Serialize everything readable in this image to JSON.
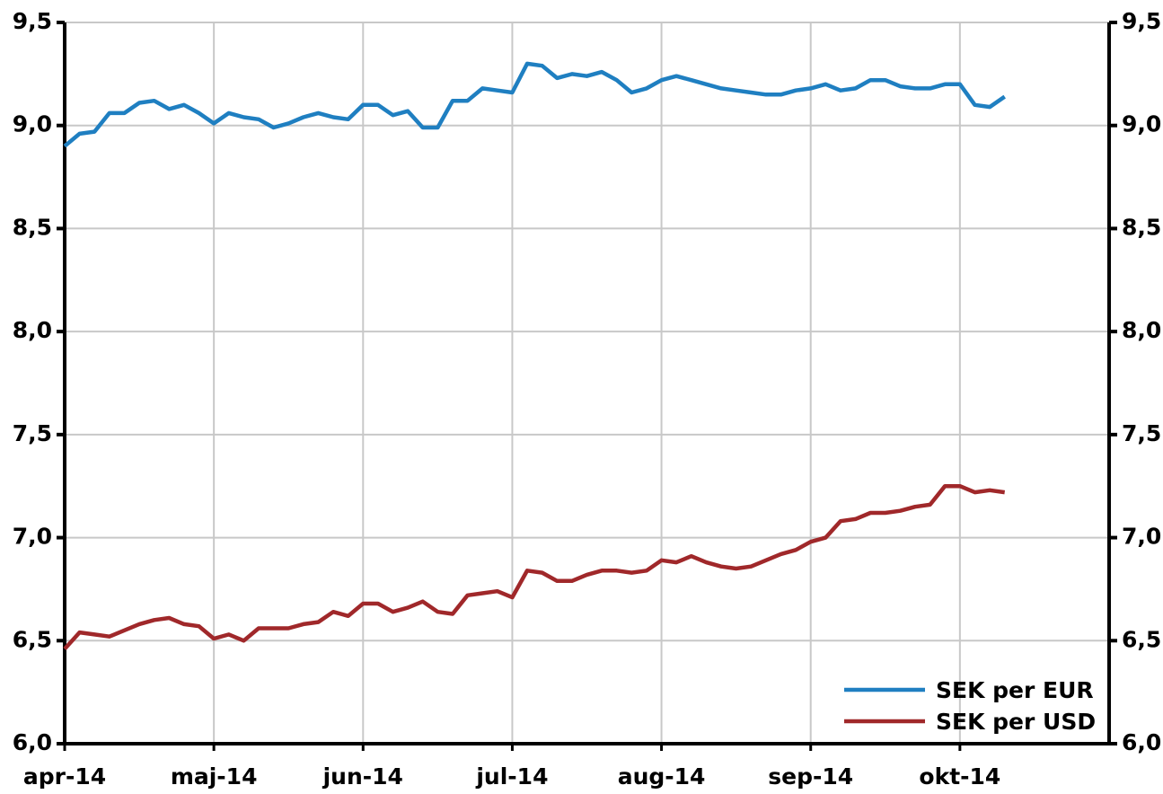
{
  "chart_data": {
    "type": "line",
    "categories": [
      "apr-14",
      null,
      null,
      null,
      null,
      null,
      null,
      null,
      null,
      null,
      "maj-14",
      null,
      null,
      null,
      null,
      null,
      null,
      null,
      null,
      null,
      "jun-14",
      null,
      null,
      null,
      null,
      null,
      null,
      null,
      null,
      null,
      "jul-14",
      null,
      null,
      null,
      null,
      null,
      null,
      null,
      null,
      null,
      "aug-14",
      null,
      null,
      null,
      null,
      null,
      null,
      null,
      null,
      null,
      "sep-14",
      null,
      null,
      null,
      null,
      null,
      null,
      null,
      null,
      null,
      "okt-14",
      null,
      null,
      null,
      null,
      null,
      null,
      null,
      null,
      null
    ],
    "series": [
      {
        "name": "SEK per EUR",
        "color": "#1f7fc1",
        "values": [
          8.9,
          8.96,
          8.97,
          9.06,
          9.06,
          9.11,
          9.12,
          9.08,
          9.1,
          9.06,
          9.01,
          9.06,
          9.04,
          9.03,
          8.99,
          9.01,
          9.04,
          9.06,
          9.04,
          9.03,
          9.1,
          9.1,
          9.05,
          9.07,
          8.99,
          8.99,
          9.12,
          9.12,
          9.18,
          9.17,
          9.16,
          9.3,
          9.29,
          9.23,
          9.25,
          9.24,
          9.26,
          9.22,
          9.16,
          9.18,
          9.22,
          9.24,
          9.22,
          9.2,
          9.18,
          9.17,
          9.16,
          9.15,
          9.15,
          9.17,
          9.18,
          9.2,
          9.17,
          9.18,
          9.22,
          9.22,
          9.19,
          9.18,
          9.18,
          9.2,
          9.2,
          9.1,
          9.09,
          9.14,
          null,
          null,
          null,
          null,
          null,
          null
        ]
      },
      {
        "name": "SEK per USD",
        "color": "#a0282a",
        "values": [
          6.46,
          6.54,
          6.53,
          6.52,
          6.55,
          6.58,
          6.6,
          6.61,
          6.58,
          6.57,
          6.51,
          6.53,
          6.5,
          6.56,
          6.56,
          6.56,
          6.58,
          6.59,
          6.64,
          6.62,
          6.68,
          6.68,
          6.64,
          6.66,
          6.69,
          6.64,
          6.63,
          6.72,
          6.73,
          6.74,
          6.71,
          6.84,
          6.83,
          6.79,
          6.79,
          6.82,
          6.84,
          6.84,
          6.83,
          6.84,
          6.89,
          6.88,
          6.91,
          6.88,
          6.86,
          6.85,
          6.86,
          6.89,
          6.92,
          6.94,
          6.98,
          7.0,
          7.08,
          7.09,
          7.12,
          7.12,
          7.13,
          7.15,
          7.16,
          7.25,
          7.25,
          7.22,
          7.23,
          7.22,
          null,
          null,
          null,
          null,
          null,
          null
        ]
      }
    ],
    "ylim": [
      6.0,
      9.5
    ],
    "yticks": [
      {
        "value": 6.0,
        "label": "6,0"
      },
      {
        "value": 6.5,
        "label": "6,5"
      },
      {
        "value": 7.0,
        "label": "7,0"
      },
      {
        "value": 7.5,
        "label": "7,5"
      },
      {
        "value": 8.0,
        "label": "8,0"
      },
      {
        "value": 8.5,
        "label": "8,5"
      },
      {
        "value": 9.0,
        "label": "9,0"
      },
      {
        "value": 9.5,
        "label": "9,5"
      }
    ],
    "y2lim": [
      6.0,
      9.5
    ],
    "y2ticks": [
      {
        "value": 6.0,
        "label": "6,0"
      },
      {
        "value": 6.5,
        "label": "6,5"
      },
      {
        "value": 7.0,
        "label": "7,0"
      },
      {
        "value": 7.5,
        "label": "7,5"
      },
      {
        "value": 8.0,
        "label": "8,0"
      },
      {
        "value": 8.5,
        "label": "8,5"
      },
      {
        "value": 9.0,
        "label": "9,0"
      },
      {
        "value": 9.5,
        "label": "9,5"
      }
    ],
    "grid": true,
    "legend": "lower right"
  }
}
